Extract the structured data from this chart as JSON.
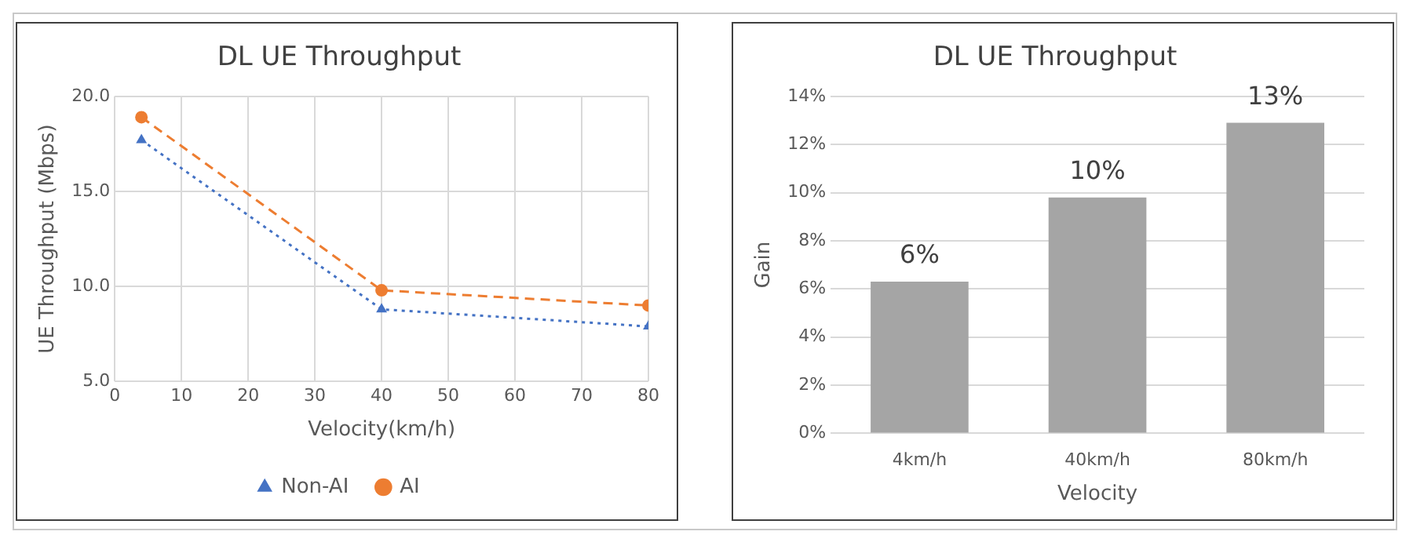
{
  "chart_data": [
    {
      "type": "line",
      "title": "DL UE Throughput",
      "xlabel": "Velocity(km/h)",
      "ylabel": "UE Throughput (Mbps)",
      "series": [
        {
          "name": "Non-AI",
          "color": "#4472c4",
          "x": [
            4,
            40,
            80
          ],
          "values": [
            17.7,
            8.8,
            7.9
          ],
          "marker": "triangle",
          "line_style": "dotted"
        },
        {
          "name": "AI",
          "color": "#ed7d31",
          "x": [
            4,
            40,
            80
          ],
          "values": [
            18.9,
            9.8,
            9.0
          ],
          "marker": "circle",
          "line_style": "dashed"
        }
      ],
      "xlim": [
        0,
        80
      ],
      "xticks": [
        0,
        10,
        20,
        30,
        40,
        50,
        60,
        70,
        80
      ],
      "ylim": [
        5,
        20
      ],
      "yticks": [
        {
          "value": 5,
          "label": "5.0"
        },
        {
          "value": 10,
          "label": "10.0"
        },
        {
          "value": 15,
          "label": "15.0"
        },
        {
          "value": 20,
          "label": "20.0"
        }
      ],
      "grid": true,
      "legend": "bottom"
    },
    {
      "type": "bar",
      "title": "DL UE Throughput",
      "xlabel": "Velocity",
      "ylabel": "Gain",
      "categories": [
        "4km/h",
        "40km/h",
        "80km/h"
      ],
      "values": [
        6.3,
        9.8,
        12.9
      ],
      "color": "#a5a5a5",
      "value_labels": [
        "6%",
        "10%",
        "13%"
      ],
      "ylim": [
        0,
        14
      ],
      "yticks": [
        {
          "value": 0,
          "label": "0%"
        },
        {
          "value": 2,
          "label": "2%"
        },
        {
          "value": 4,
          "label": "4%"
        },
        {
          "value": 6,
          "label": "6%"
        },
        {
          "value": 8,
          "label": "8%"
        },
        {
          "value": 10,
          "label": "10%"
        },
        {
          "value": 12,
          "label": "12%"
        },
        {
          "value": 14,
          "label": "14%"
        }
      ],
      "grid": "y"
    }
  ]
}
